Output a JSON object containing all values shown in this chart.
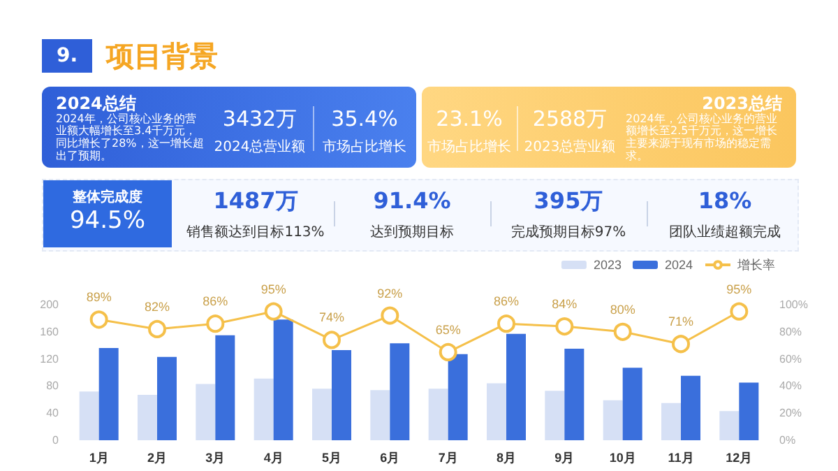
{
  "chart_data": [
    {
      "type": "other",
      "title": "项目背景",
      "annotations": [
        "9."
      ]
    },
    {
      "type": "other",
      "title": "2024总结",
      "annotations": [
        "2024年，公司核心业务的营业额大幅增长至3.4千万元，同比增长了28%，这一增长超出了预期。",
        "3432万",
        "2024总营业额",
        "35.4%",
        "市场占比增长"
      ]
    },
    {
      "type": "other",
      "title": "2023总结",
      "annotations": [
        "2024年，公司核心业务的营业额增长至2.5千万元，这一增长主要来源于现有市场的稳定需求。",
        "23.1%",
        "市场占比增长",
        "2588万",
        "2023总营业额"
      ]
    },
    {
      "type": "other",
      "title": "整体完成度",
      "annotations": [
        "94.5%",
        "1487万",
        "销售额达到目标113%",
        "91.4%",
        "达到预期目标",
        "395万",
        "完成预期目标97%",
        "18%",
        "团队业绩超额完成"
      ]
    },
    {
      "type": "bar",
      "categories": [
        "1月",
        "2月",
        "3月",
        "4月",
        "5月",
        "6月",
        "7月",
        "8月",
        "9月",
        "10月",
        "11月",
        "12月"
      ],
      "series": [
        {
          "name": "2023",
          "color": "#d6e0f5",
          "values": [
            72,
            67,
            83,
            91,
            76,
            74,
            76,
            84,
            73,
            59,
            55,
            43
          ]
        },
        {
          "name": "2024",
          "color": "#3a6fdc",
          "values": [
            136,
            123,
            155,
            178,
            133,
            143,
            127,
            157,
            135,
            107,
            95,
            85
          ]
        },
        {
          "name": "增长率",
          "type": "line",
          "axis": "y2",
          "color": "#f5c04a",
          "values": [
            89,
            82,
            86,
            95,
            74,
            92,
            65,
            86,
            84,
            80,
            71,
            95
          ],
          "value_labels": [
            "89%",
            "82%",
            "86%",
            "95%",
            "74%",
            "92%",
            "65%",
            "86%",
            "84%",
            "80%",
            "71%",
            "95%"
          ]
        }
      ],
      "ylim": [
        0,
        200
      ],
      "yticks": [
        0,
        40,
        80,
        120,
        160,
        200
      ],
      "y2lim": [
        0,
        100
      ],
      "y2ticks": [
        {
          "value": 0,
          "label": "0%"
        },
        {
          "value": 20,
          "label": "20%"
        },
        {
          "value": 40,
          "label": "40%"
        },
        {
          "value": 60,
          "label": "60%"
        },
        {
          "value": 80,
          "label": "80%"
        },
        {
          "value": 100,
          "label": "100%"
        }
      ],
      "legend": "top right",
      "marker": "circle"
    }
  ]
}
